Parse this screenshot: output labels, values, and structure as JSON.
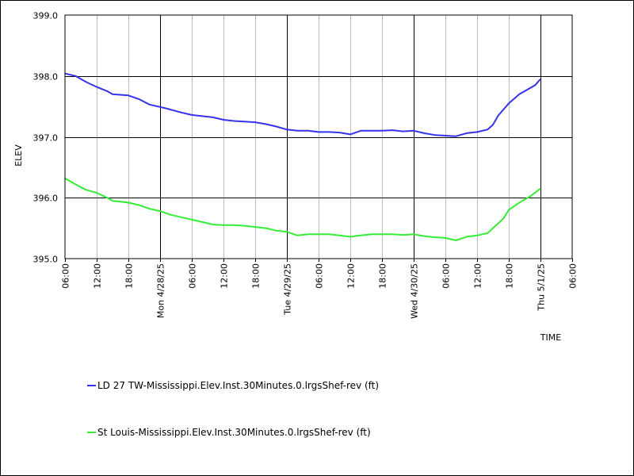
{
  "chart_data": {
    "type": "line",
    "title": "",
    "xlabel": "TIME",
    "ylabel": "ELEV",
    "grid": true,
    "legend_placement": "bottom",
    "x_range": [
      "2025-04-27T06:00",
      "2025-05-01T06:00"
    ],
    "ylim": [
      395.0,
      399.0
    ],
    "y_ticks": [
      {
        "value": 399.0,
        "label": "399.0"
      },
      {
        "value": 398.0,
        "label": "398.0"
      },
      {
        "value": 397.0,
        "label": "397.0"
      },
      {
        "value": 396.0,
        "label": "396.0"
      },
      {
        "value": 395.0,
        "label": "395.0"
      }
    ],
    "x_ticks": [
      {
        "t": "2025-04-27T06:00",
        "label": "06:00",
        "major": false
      },
      {
        "t": "2025-04-27T12:00",
        "label": "12:00",
        "major": false
      },
      {
        "t": "2025-04-27T18:00",
        "label": "18:00",
        "major": false
      },
      {
        "t": "2025-04-28T00:00",
        "label": "Mon 4/28/25",
        "major": true
      },
      {
        "t": "2025-04-28T06:00",
        "label": "06:00",
        "major": false
      },
      {
        "t": "2025-04-28T12:00",
        "label": "12:00",
        "major": false
      },
      {
        "t": "2025-04-28T18:00",
        "label": "18:00",
        "major": false
      },
      {
        "t": "2025-04-29T00:00",
        "label": "Tue 4/29/25",
        "major": true
      },
      {
        "t": "2025-04-29T06:00",
        "label": "06:00",
        "major": false
      },
      {
        "t": "2025-04-29T12:00",
        "label": "12:00",
        "major": false
      },
      {
        "t": "2025-04-29T18:00",
        "label": "18:00",
        "major": false
      },
      {
        "t": "2025-04-30T00:00",
        "label": "Wed 4/30/25",
        "major": true
      },
      {
        "t": "2025-04-30T06:00",
        "label": "06:00",
        "major": false
      },
      {
        "t": "2025-04-30T12:00",
        "label": "12:00",
        "major": false
      },
      {
        "t": "2025-04-30T18:00",
        "label": "18:00",
        "major": false
      },
      {
        "t": "2025-05-01T00:00",
        "label": "Thu 5/1/25",
        "major": true
      },
      {
        "t": "2025-05-01T06:00",
        "label": "06:00",
        "major": false
      }
    ],
    "series": [
      {
        "name": "LD 27 TW-Mississippi.Elev.Inst.30Minutes.0.lrgsShef-rev (ft)",
        "color": "#3333ee",
        "points": [
          [
            "2025-04-27T06:00",
            398.04
          ],
          [
            "2025-04-27T08:00",
            398.0
          ],
          [
            "2025-04-27T10:00",
            397.9
          ],
          [
            "2025-04-27T12:00",
            397.82
          ],
          [
            "2025-04-27T14:00",
            397.75
          ],
          [
            "2025-04-27T15:00",
            397.7
          ],
          [
            "2025-04-27T18:00",
            397.68
          ],
          [
            "2025-04-27T20:00",
            397.62
          ],
          [
            "2025-04-27T22:00",
            397.53
          ],
          [
            "2025-04-28T01:00",
            397.47
          ],
          [
            "2025-04-28T04:00",
            397.4
          ],
          [
            "2025-04-28T06:00",
            397.36
          ],
          [
            "2025-04-28T08:00",
            397.34
          ],
          [
            "2025-04-28T10:00",
            397.32
          ],
          [
            "2025-04-28T12:00",
            397.28
          ],
          [
            "2025-04-28T14:00",
            397.26
          ],
          [
            "2025-04-28T16:00",
            397.25
          ],
          [
            "2025-04-28T18:00",
            397.24
          ],
          [
            "2025-04-28T20:00",
            397.21
          ],
          [
            "2025-04-28T22:00",
            397.17
          ],
          [
            "2025-04-29T00:00",
            397.12
          ],
          [
            "2025-04-29T02:00",
            397.1
          ],
          [
            "2025-04-29T04:00",
            397.1
          ],
          [
            "2025-04-29T06:00",
            397.08
          ],
          [
            "2025-04-29T08:00",
            397.08
          ],
          [
            "2025-04-29T10:00",
            397.07
          ],
          [
            "2025-04-29T12:00",
            397.04
          ],
          [
            "2025-04-29T14:00",
            397.1
          ],
          [
            "2025-04-29T16:00",
            397.1
          ],
          [
            "2025-04-29T18:00",
            397.1
          ],
          [
            "2025-04-29T20:00",
            397.11
          ],
          [
            "2025-04-29T22:00",
            397.09
          ],
          [
            "2025-04-30T00:00",
            397.1
          ],
          [
            "2025-04-30T02:00",
            397.06
          ],
          [
            "2025-04-30T04:00",
            397.03
          ],
          [
            "2025-04-30T06:00",
            397.02
          ],
          [
            "2025-04-30T08:00",
            397.01
          ],
          [
            "2025-04-30T10:00",
            397.06
          ],
          [
            "2025-04-30T12:00",
            397.08
          ],
          [
            "2025-04-30T14:00",
            397.12
          ],
          [
            "2025-04-30T15:00",
            397.2
          ],
          [
            "2025-04-30T16:00",
            397.35
          ],
          [
            "2025-04-30T17:00",
            397.45
          ],
          [
            "2025-04-30T18:00",
            397.55
          ],
          [
            "2025-04-30T20:00",
            397.7
          ],
          [
            "2025-04-30T22:00",
            397.8
          ],
          [
            "2025-04-30T23:00",
            397.85
          ],
          [
            "2025-05-01T00:00",
            397.95
          ]
        ]
      },
      {
        "name": "St Louis-Mississippi.Elev.Inst.30Minutes.0.lrgsShef-rev (ft)",
        "color": "#33ee33",
        "points": [
          [
            "2025-04-27T06:00",
            396.32
          ],
          [
            "2025-04-27T08:00",
            396.22
          ],
          [
            "2025-04-27T10:00",
            396.13
          ],
          [
            "2025-04-27T12:00",
            396.08
          ],
          [
            "2025-04-27T14:00",
            396.0
          ],
          [
            "2025-04-27T15:00",
            395.95
          ],
          [
            "2025-04-27T18:00",
            395.92
          ],
          [
            "2025-04-27T20:00",
            395.88
          ],
          [
            "2025-04-27T22:00",
            395.82
          ],
          [
            "2025-04-28T00:00",
            395.78
          ],
          [
            "2025-04-28T02:00",
            395.72
          ],
          [
            "2025-04-28T04:00",
            395.68
          ],
          [
            "2025-04-28T06:00",
            395.64
          ],
          [
            "2025-04-28T08:00",
            395.6
          ],
          [
            "2025-04-28T10:00",
            395.56
          ],
          [
            "2025-04-28T12:00",
            395.55
          ],
          [
            "2025-04-28T14:00",
            395.55
          ],
          [
            "2025-04-28T16:00",
            395.54
          ],
          [
            "2025-04-28T18:00",
            395.52
          ],
          [
            "2025-04-28T20:00",
            395.5
          ],
          [
            "2025-04-28T22:00",
            395.46
          ],
          [
            "2025-04-29T00:00",
            395.44
          ],
          [
            "2025-04-29T02:00",
            395.38
          ],
          [
            "2025-04-29T04:00",
            395.4
          ],
          [
            "2025-04-29T06:00",
            395.4
          ],
          [
            "2025-04-29T08:00",
            395.4
          ],
          [
            "2025-04-29T10:00",
            395.38
          ],
          [
            "2025-04-29T12:00",
            395.36
          ],
          [
            "2025-04-29T14:00",
            395.38
          ],
          [
            "2025-04-29T16:00",
            395.4
          ],
          [
            "2025-04-29T18:00",
            395.4
          ],
          [
            "2025-04-29T20:00",
            395.4
          ],
          [
            "2025-04-29T22:00",
            395.39
          ],
          [
            "2025-04-30T00:00",
            395.4
          ],
          [
            "2025-04-30T02:00",
            395.37
          ],
          [
            "2025-04-30T04:00",
            395.35
          ],
          [
            "2025-04-30T06:00",
            395.34
          ],
          [
            "2025-04-30T08:00",
            395.3
          ],
          [
            "2025-04-30T10:00",
            395.36
          ],
          [
            "2025-04-30T12:00",
            395.38
          ],
          [
            "2025-04-30T14:00",
            395.42
          ],
          [
            "2025-04-30T15:00",
            395.5
          ],
          [
            "2025-04-30T16:00",
            395.58
          ],
          [
            "2025-04-30T17:00",
            395.66
          ],
          [
            "2025-04-30T18:00",
            395.8
          ],
          [
            "2025-04-30T20:00",
            395.92
          ],
          [
            "2025-04-30T22:00",
            396.02
          ],
          [
            "2025-05-01T00:00",
            396.15
          ]
        ]
      }
    ]
  }
}
